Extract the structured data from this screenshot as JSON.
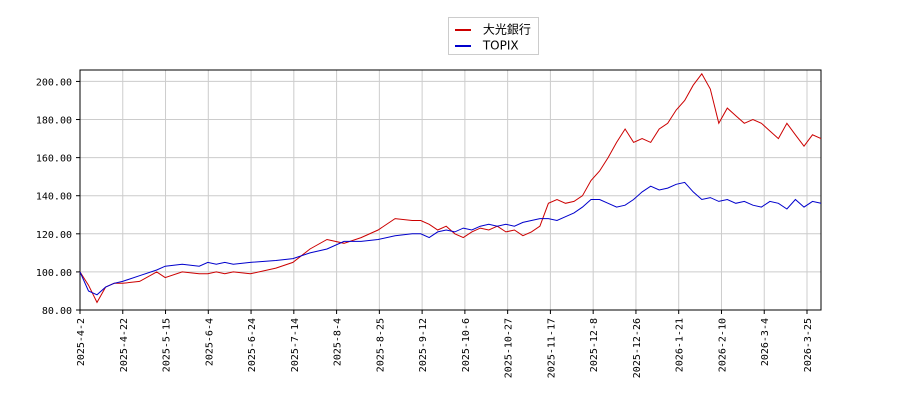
{
  "chart_data": {
    "type": "line",
    "title": "",
    "xlabel": "",
    "ylabel": "",
    "ylim": [
      80,
      206
    ],
    "grid": true,
    "legend_placement": "top-center",
    "x_ticks": [
      "2025-4-2",
      "2025-4-22",
      "2025-5-15",
      "2025-6-4",
      "2025-6-24",
      "2025-7-14",
      "2025-8-4",
      "2025-8-25",
      "2025-9-12",
      "2025-10-6",
      "2025-10-27",
      "2025-11-17",
      "2025-12-8",
      "2025-12-26",
      "2026-1-21",
      "2026-2-10",
      "2026-3-4",
      "2026-3-25"
    ],
    "y_ticks": [
      "80.00",
      "100.00",
      "120.00",
      "140.00",
      "160.00",
      "180.00",
      "200.00"
    ],
    "y_tick_values": [
      80,
      100,
      120,
      140,
      160,
      180,
      200
    ],
    "x_range": [
      0,
      174
    ],
    "series": [
      {
        "name": "大光銀行",
        "color": "#cc0000",
        "x": [
          0,
          2,
          4,
          6,
          8,
          10,
          14,
          18,
          20,
          24,
          28,
          30,
          32,
          34,
          36,
          40,
          46,
          50,
          54,
          58,
          62,
          66,
          70,
          74,
          78,
          80,
          82,
          84,
          86,
          88,
          90,
          92,
          94,
          96,
          98,
          100,
          102,
          104,
          106,
          108,
          110,
          112,
          114,
          116,
          118,
          120,
          122,
          124,
          126,
          128,
          130,
          132,
          134,
          136,
          138,
          140,
          142,
          144,
          146,
          148,
          150,
          152,
          154,
          156,
          158,
          160,
          162,
          164,
          166,
          168,
          170,
          172,
          174
        ],
        "y": [
          100,
          93,
          84,
          92,
          94,
          94,
          95,
          100,
          97,
          100,
          99,
          99,
          100,
          99,
          100,
          99,
          102,
          105,
          112,
          117,
          115,
          118,
          122,
          128,
          127,
          127,
          125,
          122,
          124,
          120,
          118,
          121,
          123,
          122,
          124,
          121,
          122,
          119,
          121,
          124,
          136,
          138,
          136,
          137,
          140,
          148,
          153,
          160,
          168,
          175,
          168,
          170,
          168,
          175,
          178,
          185,
          190,
          198,
          204,
          196,
          178,
          186,
          182,
          178,
          180,
          178,
          174,
          170,
          178,
          172,
          166,
          172,
          170
        ],
        "line": "thin red"
      },
      {
        "name": "TOPIX",
        "color": "#0000cc",
        "x": [
          0,
          2,
          4,
          6,
          8,
          10,
          14,
          18,
          20,
          24,
          28,
          30,
          32,
          34,
          36,
          40,
          46,
          50,
          54,
          58,
          62,
          66,
          70,
          74,
          78,
          80,
          82,
          84,
          86,
          88,
          90,
          92,
          94,
          96,
          98,
          100,
          102,
          104,
          106,
          108,
          110,
          112,
          114,
          116,
          118,
          120,
          122,
          124,
          126,
          128,
          130,
          132,
          134,
          136,
          138,
          140,
          142,
          144,
          146,
          148,
          150,
          152,
          154,
          156,
          158,
          160,
          162,
          164,
          166,
          168,
          170,
          172,
          174
        ],
        "y": [
          100,
          90,
          88,
          92,
          94,
          95,
          98,
          101,
          103,
          104,
          103,
          105,
          104,
          105,
          104,
          105,
          106,
          107,
          110,
          112,
          116,
          116,
          117,
          119,
          120,
          120,
          118,
          121,
          122,
          121,
          123,
          122,
          124,
          125,
          124,
          125,
          124,
          126,
          127,
          128,
          128,
          127,
          129,
          131,
          134,
          138,
          138,
          136,
          134,
          135,
          138,
          142,
          145,
          143,
          144,
          146,
          147,
          142,
          138,
          139,
          137,
          138,
          136,
          137,
          135,
          134,
          137,
          136,
          133,
          138,
          134,
          137,
          136
        ],
        "line": "thin blue"
      }
    ]
  }
}
